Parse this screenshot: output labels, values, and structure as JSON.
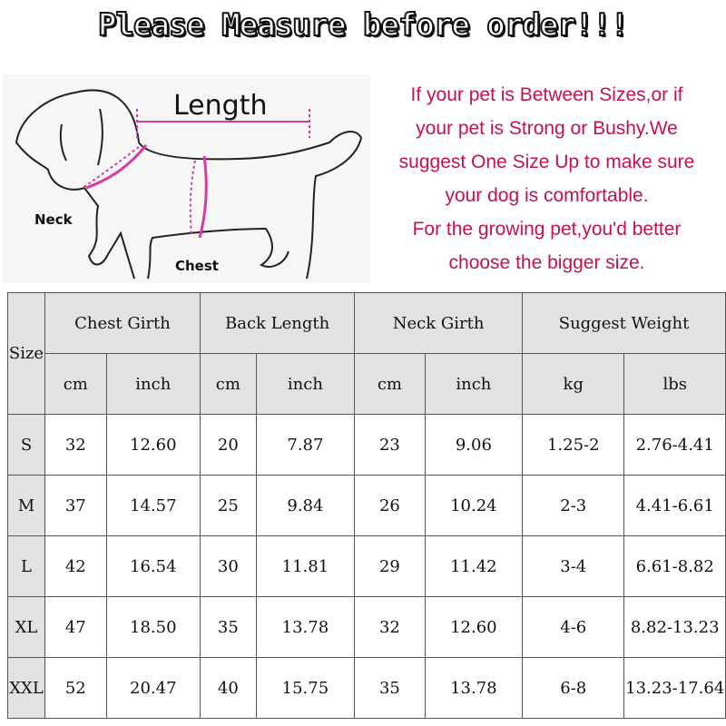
{
  "title": "Please Measure before order!!!",
  "diagram": {
    "length": "Length",
    "neck": "Neck",
    "chest": "Chest",
    "accent": "#d63aa8"
  },
  "note": [
    "If your pet is Between Sizes,or if",
    "your pet is Strong or Bushy.We",
    "suggest One Size Up to make sure",
    "your dog is comfortable.",
    "For the growing pet,you'd better",
    "choose the bigger size."
  ],
  "table": {
    "size_header": "Size",
    "groups": [
      "Chest Girth",
      "Back Length",
      "Neck Girth",
      "Suggest Weight"
    ],
    "units": [
      "cm",
      "inch",
      "cm",
      "inch",
      "cm",
      "inch",
      "kg",
      "lbs"
    ],
    "rows": [
      [
        "S",
        "32",
        "12.60",
        "20",
        "7.87",
        "23",
        "9.06",
        "1.25-2",
        "2.76-4.41"
      ],
      [
        "M",
        "37",
        "14.57",
        "25",
        "9.84",
        "26",
        "10.24",
        "2-3",
        "4.41-6.61"
      ],
      [
        "L",
        "42",
        "16.54",
        "30",
        "11.81",
        "29",
        "11.42",
        "3-4",
        "6.61-8.82"
      ],
      [
        "XL",
        "47",
        "18.50",
        "35",
        "13.78",
        "32",
        "12.60",
        "4-6",
        "8.82-13.23"
      ],
      [
        "XXL",
        "52",
        "20.47",
        "40",
        "15.75",
        "35",
        "13.78",
        "6-8",
        "13.23-17.64"
      ]
    ]
  }
}
